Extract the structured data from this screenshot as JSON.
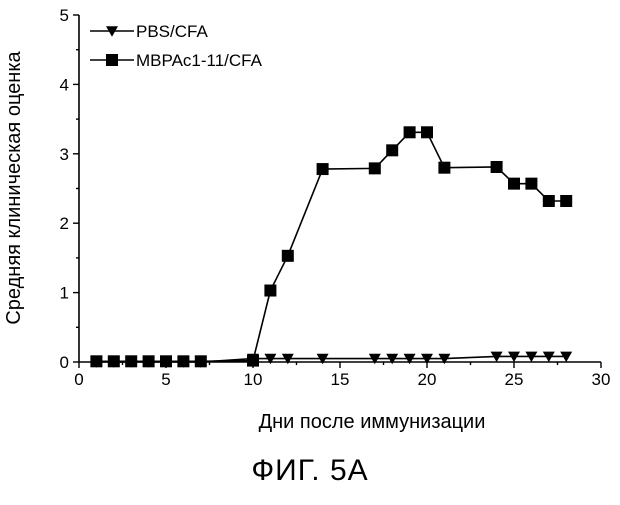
{
  "figure": {
    "caption": "ФИГ. 5А"
  },
  "chart_data": {
    "type": "line",
    "xlabel": "Дни после иммунизации",
    "ylabel": "Средняя клиническая оценка",
    "xlim": [
      0,
      30
    ],
    "ylim": [
      0,
      5
    ],
    "xticks": [
      0,
      5,
      10,
      15,
      20,
      25,
      30
    ],
    "yticks": [
      0,
      1,
      2,
      3,
      4,
      5
    ],
    "grid": false,
    "legend_position": "top-left",
    "series": [
      {
        "name": "PBS/CFA",
        "marker": "triangle-down",
        "x": [
          1,
          2,
          3,
          4,
          5,
          6,
          7,
          10,
          11,
          12,
          14,
          17,
          18,
          19,
          20,
          21,
          24,
          25,
          26,
          27,
          28
        ],
        "y": [
          0,
          0,
          0,
          0,
          0,
          0,
          0,
          0.05,
          0.05,
          0.05,
          0.05,
          0.05,
          0.05,
          0.05,
          0.05,
          0.05,
          0.08,
          0.08,
          0.08,
          0.08,
          0.08
        ]
      },
      {
        "name": "MBPAc1-11/CFA",
        "marker": "square",
        "x": [
          1,
          2,
          3,
          4,
          5,
          6,
          7,
          10,
          11,
          12,
          14,
          17,
          18,
          19,
          20,
          21,
          24,
          25,
          26,
          27,
          28
        ],
        "y": [
          0.01,
          0.01,
          0.01,
          0.01,
          0.01,
          0.01,
          0.01,
          0.02,
          1.03,
          1.53,
          2.78,
          2.79,
          3.05,
          3.31,
          3.31,
          2.8,
          2.81,
          2.57,
          2.57,
          2.32,
          2.32
        ]
      }
    ]
  }
}
